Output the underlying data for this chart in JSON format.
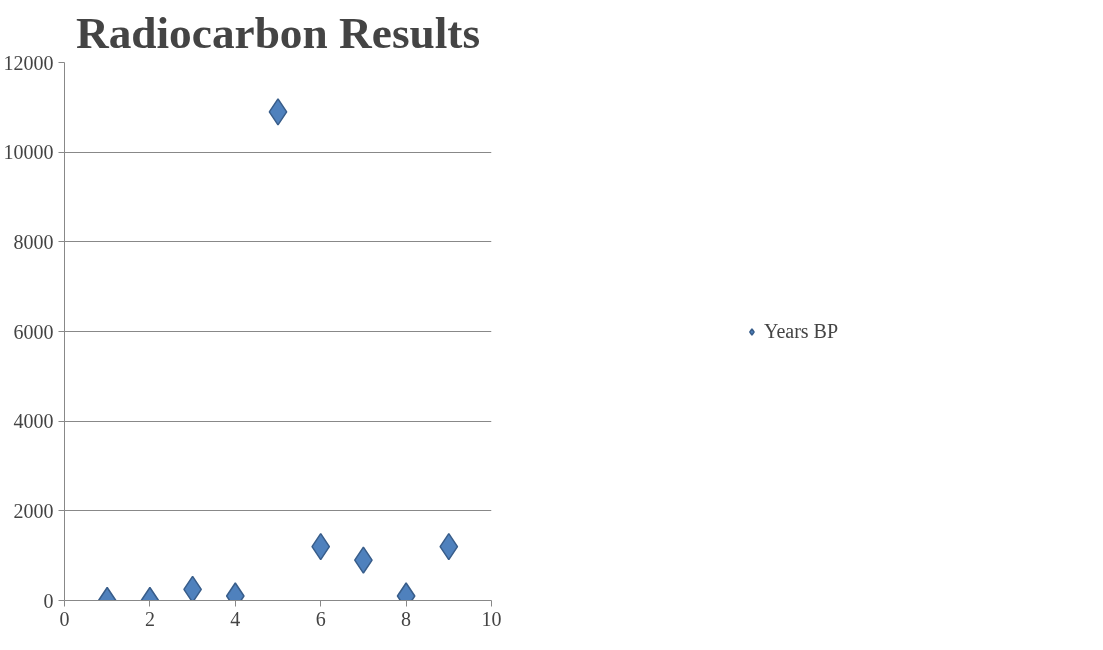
{
  "chart_data": {
    "type": "scatter",
    "title": "Radiocarbon Results",
    "x": [
      1,
      2,
      3,
      4,
      5,
      6,
      7,
      8,
      9
    ],
    "series": [
      {
        "name": "Years BP",
        "color": "#4f81bd",
        "values": [
          0,
          0,
          250,
          100,
          10900,
          1200,
          900,
          100,
          1200
        ]
      }
    ],
    "xlim": [
      0,
      10
    ],
    "xticks": [
      0,
      2,
      4,
      6,
      8,
      10
    ],
    "ylim": [
      0,
      12000
    ],
    "yticks": [
      0,
      2000,
      4000,
      6000,
      8000,
      10000,
      12000
    ],
    "grid": "y",
    "legend": "right",
    "marker": "diamond"
  }
}
